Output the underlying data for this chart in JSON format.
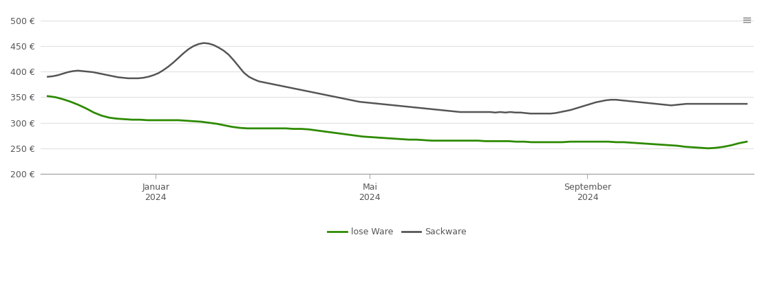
{
  "ylim": [
    200,
    520
  ],
  "yticks": [
    200,
    250,
    300,
    350,
    400,
    450,
    500
  ],
  "background_color": "#ffffff",
  "grid_color": "#e0e0e0",
  "line_color_lose": "#2d8a00",
  "line_color_sack": "#555555",
  "legend_labels": [
    "lose Ware",
    "Sackware"
  ],
  "xtick_labels_line1": [
    "Januar",
    "Mai",
    "September"
  ],
  "xtick_labels_line2": [
    "2024",
    "2024",
    "2024"
  ],
  "lose_ware": [
    352,
    350,
    346,
    341,
    335,
    328,
    320,
    314,
    310,
    308,
    307,
    306,
    306,
    305,
    305,
    305,
    305,
    305,
    304,
    303,
    302,
    300,
    298,
    295,
    292,
    290,
    289,
    289,
    289,
    289,
    289,
    289,
    288,
    288,
    287,
    285,
    283,
    281,
    279,
    277,
    275,
    273,
    272,
    271,
    270,
    269,
    268,
    267,
    267,
    266,
    265,
    265,
    265,
    265,
    265,
    265,
    265,
    264,
    264,
    264,
    264,
    263,
    263,
    262,
    262,
    262,
    262,
    262,
    263,
    263,
    263,
    263,
    263,
    263,
    262,
    262,
    261,
    260,
    259,
    258,
    257,
    256,
    255,
    253,
    252,
    251,
    250,
    251,
    253,
    256,
    260,
    263
  ],
  "sack_ware": [
    390,
    391,
    393,
    396,
    399,
    401,
    402,
    401,
    400,
    399,
    397,
    395,
    393,
    391,
    389,
    388,
    387,
    387,
    387,
    388,
    390,
    393,
    397,
    403,
    410,
    418,
    427,
    436,
    444,
    450,
    454,
    456,
    455,
    452,
    447,
    441,
    433,
    422,
    410,
    398,
    390,
    385,
    381,
    379,
    377,
    375,
    373,
    371,
    369,
    367,
    365,
    363,
    361,
    359,
    357,
    355,
    353,
    351,
    349,
    347,
    345,
    343,
    341,
    340,
    339,
    338,
    337,
    336,
    335,
    334,
    333,
    332,
    331,
    330,
    329,
    328,
    327,
    326,
    325,
    324,
    323,
    322,
    321,
    321,
    321,
    321,
    321,
    321,
    321,
    320,
    321,
    320,
    321,
    320,
    320,
    319,
    318,
    318,
    318,
    318,
    318,
    319,
    321,
    323,
    325,
    328,
    331,
    334,
    337,
    340,
    342,
    344,
    345,
    345,
    344,
    343,
    342,
    341,
    340,
    339,
    338,
    337,
    336,
    335,
    334,
    335,
    336,
    337,
    337,
    337,
    337,
    337,
    337,
    337,
    337,
    337,
    337,
    337,
    337,
    337
  ]
}
